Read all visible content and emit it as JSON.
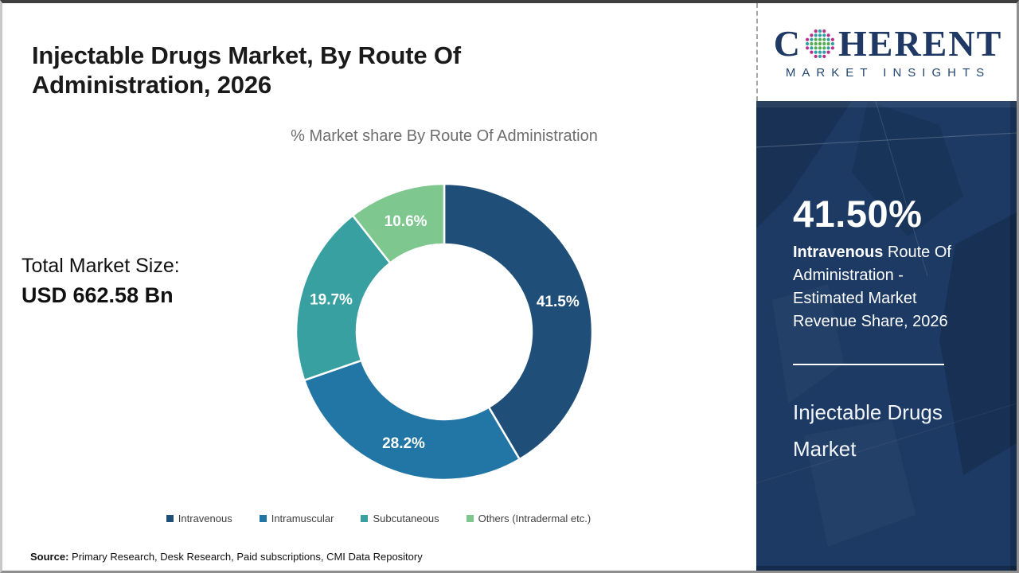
{
  "page": {
    "title": "Injectable Drugs Market, By Route Of Administration, 2026",
    "source_label": "Source:",
    "source_text": " Primary Research, Desk Research, Paid subscriptions, CMI Data Repository"
  },
  "logo": {
    "brand_prefix": "C",
    "brand_suffix": "HERENT",
    "brand_sub": "MARKET INSIGHTS",
    "brand_color": "#1f3864",
    "globe_colors": {
      "teal": "#2e9da6",
      "green": "#4fae4e",
      "magenta": "#b72e8b"
    }
  },
  "main": {
    "total_label": "Total Market Size:",
    "total_value": "USD 662.58 Bn"
  },
  "chart_data": {
    "type": "pie",
    "donut": true,
    "title": "% Market share By Route Of Administration",
    "categories": [
      "Intravenous",
      "Intramuscular",
      "Subcutaneous",
      "Others (Intradermal etc.)"
    ],
    "values": [
      41.5,
      28.2,
      19.7,
      10.6
    ],
    "labels": [
      "41.5%",
      "28.2%",
      "19.7%",
      "10.6%"
    ],
    "colors": [
      "#1f4e79",
      "#2176a5",
      "#38a0a0",
      "#7ec88f"
    ],
    "start_angle_deg": 0,
    "direction": "clockwise",
    "legend_position": "bottom",
    "label_color": "#ffffff"
  },
  "sidebar": {
    "stat_value": "41.50%",
    "stat_bold": "Intravenous",
    "stat_rest": " Route Of Administration - Estimated Market Revenue Share, 2026",
    "product_title": "Injectable Drugs Market",
    "bg_color": "#1c3a64"
  }
}
